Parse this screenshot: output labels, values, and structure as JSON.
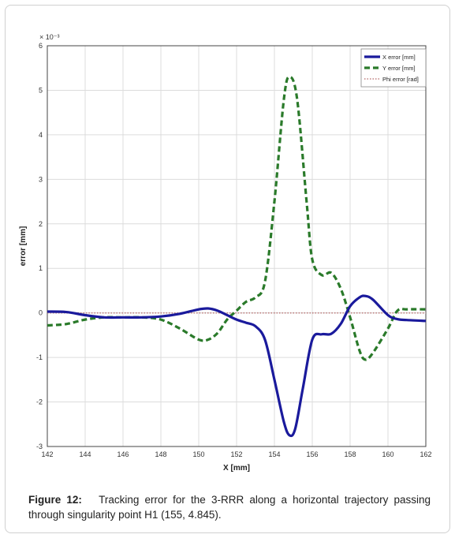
{
  "chart_data": {
    "type": "line",
    "xlabel": "X [mm]",
    "ylabel": "error [mm]",
    "y_scale_note": "× 10⁻³",
    "xlim": [
      142,
      162
    ],
    "ylim": [
      -3,
      6
    ],
    "xticks": [
      "142",
      "144",
      "146",
      "148",
      "150",
      "152",
      "154",
      "156",
      "158",
      "160",
      "162"
    ],
    "yticks": [
      "-3",
      "-2",
      "-1",
      "0",
      "1",
      "2",
      "3",
      "4",
      "5",
      "6"
    ],
    "grid": true,
    "legend_position": "top-right",
    "series": [
      {
        "name": "X error [mm]",
        "color": "#1a1a9c",
        "style": "solid",
        "points": [
          [
            142,
            0.03
          ],
          [
            143,
            0.02
          ],
          [
            144,
            -0.05
          ],
          [
            145,
            -0.1
          ],
          [
            146,
            -0.1
          ],
          [
            147,
            -0.1
          ],
          [
            148,
            -0.08
          ],
          [
            149,
            -0.02
          ],
          [
            150,
            0.08
          ],
          [
            150.5,
            0.1
          ],
          [
            151,
            0.05
          ],
          [
            151.5,
            -0.05
          ],
          [
            152,
            -0.15
          ],
          [
            152.5,
            -0.22
          ],
          [
            153,
            -0.3
          ],
          [
            153.5,
            -0.6
          ],
          [
            154,
            -1.5
          ],
          [
            154.5,
            -2.45
          ],
          [
            154.8,
            -2.75
          ],
          [
            155.1,
            -2.6
          ],
          [
            155.5,
            -1.7
          ],
          [
            156,
            -0.6
          ],
          [
            156.5,
            -0.48
          ],
          [
            157,
            -0.47
          ],
          [
            157.5,
            -0.25
          ],
          [
            158,
            0.15
          ],
          [
            158.5,
            0.35
          ],
          [
            158.8,
            0.38
          ],
          [
            159.2,
            0.3
          ],
          [
            160,
            -0.05
          ],
          [
            160.5,
            -0.14
          ],
          [
            161,
            -0.16
          ],
          [
            162,
            -0.18
          ]
        ]
      },
      {
        "name": "Y error [mm]",
        "color": "#2a7a2a",
        "style": "dashed",
        "points": [
          [
            142,
            -0.28
          ],
          [
            143,
            -0.25
          ],
          [
            144,
            -0.15
          ],
          [
            145,
            -0.1
          ],
          [
            146,
            -0.1
          ],
          [
            147,
            -0.1
          ],
          [
            148,
            -0.15
          ],
          [
            149,
            -0.35
          ],
          [
            150,
            -0.6
          ],
          [
            150.5,
            -0.6
          ],
          [
            151,
            -0.45
          ],
          [
            151.5,
            -0.15
          ],
          [
            152,
            0.05
          ],
          [
            152.5,
            0.25
          ],
          [
            153,
            0.35
          ],
          [
            153.5,
            0.7
          ],
          [
            154,
            2.5
          ],
          [
            154.5,
            4.8
          ],
          [
            154.8,
            5.3
          ],
          [
            155.2,
            4.8
          ],
          [
            155.7,
            2.5
          ],
          [
            156,
            1.2
          ],
          [
            156.5,
            0.85
          ],
          [
            157,
            0.9
          ],
          [
            157.5,
            0.55
          ],
          [
            158,
            -0.1
          ],
          [
            158.5,
            -0.85
          ],
          [
            158.8,
            -1.05
          ],
          [
            159.2,
            -0.9
          ],
          [
            160,
            -0.35
          ],
          [
            160.5,
            0.05
          ],
          [
            161,
            0.08
          ],
          [
            162,
            0.08
          ]
        ]
      },
      {
        "name": "Phi error [rad]",
        "color": "#c08080",
        "style": "dotted",
        "points": [
          [
            142,
            0.0
          ],
          [
            152,
            0.0
          ],
          [
            155,
            0.0
          ],
          [
            158,
            0.0
          ],
          [
            162,
            0.0
          ]
        ]
      }
    ]
  },
  "caption": {
    "label": "Figure 12:",
    "text": "Tracking error for the 3-RRR along a horizontal trajectory passing through singularity point H1 (155, 4.845)."
  }
}
